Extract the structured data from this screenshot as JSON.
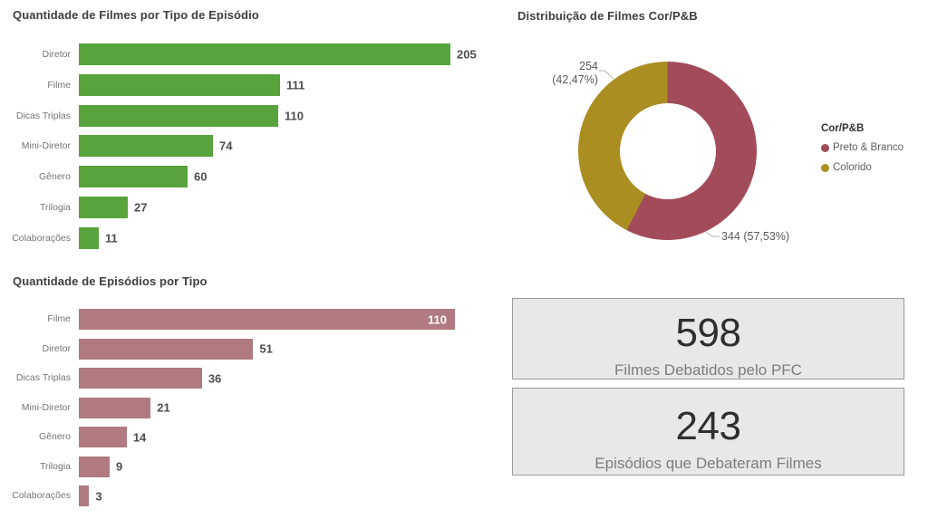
{
  "chart_data": [
    {
      "type": "bar",
      "orientation": "horizontal",
      "title": "Quantidade de Filmes por Tipo de Episódio",
      "categories": [
        "Diretor",
        "Filme",
        "Dicas Triplas",
        "Mini-Diretor",
        "Gênero",
        "Trilogia",
        "Colaborações"
      ],
      "values": [
        205,
        111,
        110,
        74,
        60,
        27,
        11
      ],
      "value_labels": [
        "205",
        "111",
        "110",
        "74",
        "60",
        "27",
        "11"
      ],
      "value_label_inside": [
        false,
        false,
        false,
        false,
        false,
        false,
        false
      ],
      "bar_color": "#58a33c",
      "xlabel": "",
      "ylabel": "",
      "xlim": [
        0,
        205
      ],
      "grid": false,
      "axes_shown": false
    },
    {
      "type": "donut",
      "title": "Distribuição de Filmes Cor/P&B",
      "legend_title": "Cor/P&B",
      "legend_position": "right",
      "start_angle_deg": 0,
      "slices": [
        {
          "label": "Preto & Branco",
          "value": 344,
          "percent": 57.53,
          "color": "#a34c59",
          "data_label_lines": [
            "344 (57,53%)"
          ]
        },
        {
          "label": "Colorido",
          "value": 254,
          "percent": 42.47,
          "color": "#aa8e22",
          "data_label_lines": [
            "254",
            "(42,47%)"
          ]
        }
      ]
    },
    {
      "type": "bar",
      "orientation": "horizontal",
      "title": "Quantidade de Episódios por Tipo",
      "categories": [
        "Filme",
        "Diretor",
        "Dicas Triplas",
        "Mini-Diretor",
        "Gênero",
        "Trilogia",
        "Colaborações"
      ],
      "values": [
        110,
        51,
        36,
        21,
        14,
        9,
        3
      ],
      "value_labels": [
        "110",
        "51",
        "36",
        "21",
        "14",
        "9",
        "3"
      ],
      "value_label_inside": [
        true,
        false,
        false,
        false,
        false,
        false,
        false
      ],
      "bar_color": "#b07a80",
      "xlabel": "",
      "ylabel": "",
      "xlim": [
        0,
        110
      ],
      "grid": false,
      "axes_shown": false
    }
  ],
  "cards": [
    {
      "value": "598",
      "label": "Filmes Debatidos pelo PFC"
    },
    {
      "value": "243",
      "label": "Episódios que Debateram Filmes"
    }
  ],
  "colors": {
    "background": "#ffffff",
    "bar_green": "#58a33c",
    "bar_pink": "#b07a80",
    "donut_maroon": "#a34c59",
    "donut_gold": "#aa8e22",
    "card_background": "#e8e8e8",
    "card_border": "#999999"
  }
}
